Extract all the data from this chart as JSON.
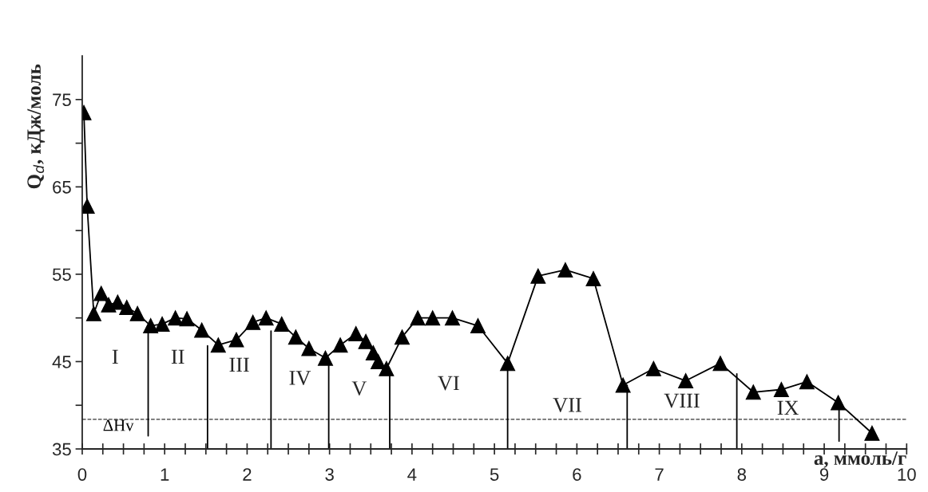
{
  "chart_data": {
    "type": "line",
    "xlabel": "a, ммоль/г",
    "ylabel": "Q$_{d}$, кДж/моль",
    "xlim": [
      0,
      10
    ],
    "xticks": [
      0,
      1,
      2,
      3,
      4,
      5,
      6,
      7,
      8,
      9,
      10
    ],
    "ylim": [
      35,
      80
    ],
    "yticks": [
      35,
      {
        "value": 40,
        "label": null
      },
      45,
      {
        "value": 50,
        "label": null
      },
      55,
      {
        "value": 60,
        "label": null
      },
      65,
      {
        "value": 70,
        "label": null
      },
      75
    ],
    "grid": false,
    "legend": false,
    "series": [
      {
        "color": "#000000",
        "marker": "triangle",
        "line_style": "solid",
        "x": [
          0.02,
          0.06,
          0.14,
          0.23,
          0.32,
          0.43,
          0.54,
          0.67,
          0.83,
          0.97,
          1.13,
          1.27,
          1.45,
          1.65,
          1.87,
          2.07,
          2.23,
          2.42,
          2.59,
          2.75,
          2.95,
          3.13,
          3.32,
          3.44,
          3.53,
          3.59,
          3.69,
          3.88,
          4.07,
          4.25,
          4.49,
          4.8,
          5.16,
          5.53,
          5.86,
          6.2,
          6.56,
          6.93,
          7.32,
          7.74,
          8.14,
          8.48,
          8.79,
          9.17,
          9.58
        ],
        "values": [
          73.5,
          62.8,
          50.5,
          52.8,
          51.5,
          51.8,
          51.2,
          50.5,
          49.1,
          49.3,
          50.0,
          49.9,
          48.6,
          46.9,
          47.5,
          49.5,
          50.0,
          49.3,
          47.8,
          46.5,
          45.4,
          46.9,
          48.2,
          47.3,
          46.0,
          45.0,
          44.2,
          47.8,
          50.0,
          50.0,
          50.0,
          49.1,
          44.8,
          54.8,
          55.5,
          54.5,
          42.3,
          44.2,
          42.8,
          44.8,
          41.5,
          41.8,
          42.7,
          40.3,
          36.8
        ]
      },
      {
        "type": "line",
        "color": "#000000",
        "marker": "none",
        "x": [
          0.8,
          0.8
        ],
        "values": [
          36.5,
          48.3
        ]
      },
      {
        "type": "line",
        "color": "#000000",
        "marker": "none",
        "x": [
          1.52,
          1.52
        ],
        "values": [
          35,
          46.8
        ]
      },
      {
        "type": "line",
        "color": "#000000",
        "marker": "none",
        "x": [
          2.29,
          2.29
        ],
        "values": [
          35,
          48.5
        ]
      },
      {
        "type": "line",
        "color": "#000000",
        "marker": "none",
        "x": [
          2.99,
          2.99
        ],
        "values": [
          35,
          45.1
        ]
      },
      {
        "type": "line",
        "color": "#000000",
        "marker": "none",
        "x": [
          3.73,
          3.73
        ],
        "values": [
          35,
          44.2
        ]
      },
      {
        "type": "line",
        "color": "#000000",
        "marker": "none",
        "x": [
          5.16,
          5.16
        ],
        "values": [
          35,
          44.8
        ]
      },
      {
        "type": "line",
        "color": "#000000",
        "marker": "none",
        "x": [
          6.61,
          6.61
        ],
        "values": [
          35,
          42.3
        ]
      },
      {
        "type": "line",
        "color": "#000000",
        "marker": "none",
        "x": [
          7.94,
          7.94
        ],
        "values": [
          35,
          43.6
        ]
      },
      {
        "type": "line",
        "color": "#000000",
        "marker": "none",
        "x": [
          9.18,
          9.18
        ],
        "values": [
          35.9,
          40.0
        ]
      }
    ],
    "ref_lines": [
      {
        "axis": "y",
        "value": 38.4,
        "label": "ΔHv",
        "color": "#333333",
        "line_style": "dashed"
      }
    ],
    "annotations": [
      "I",
      "II",
      "III",
      "IV",
      "V",
      "VI",
      "VII",
      "VIII",
      "IX"
    ]
  }
}
